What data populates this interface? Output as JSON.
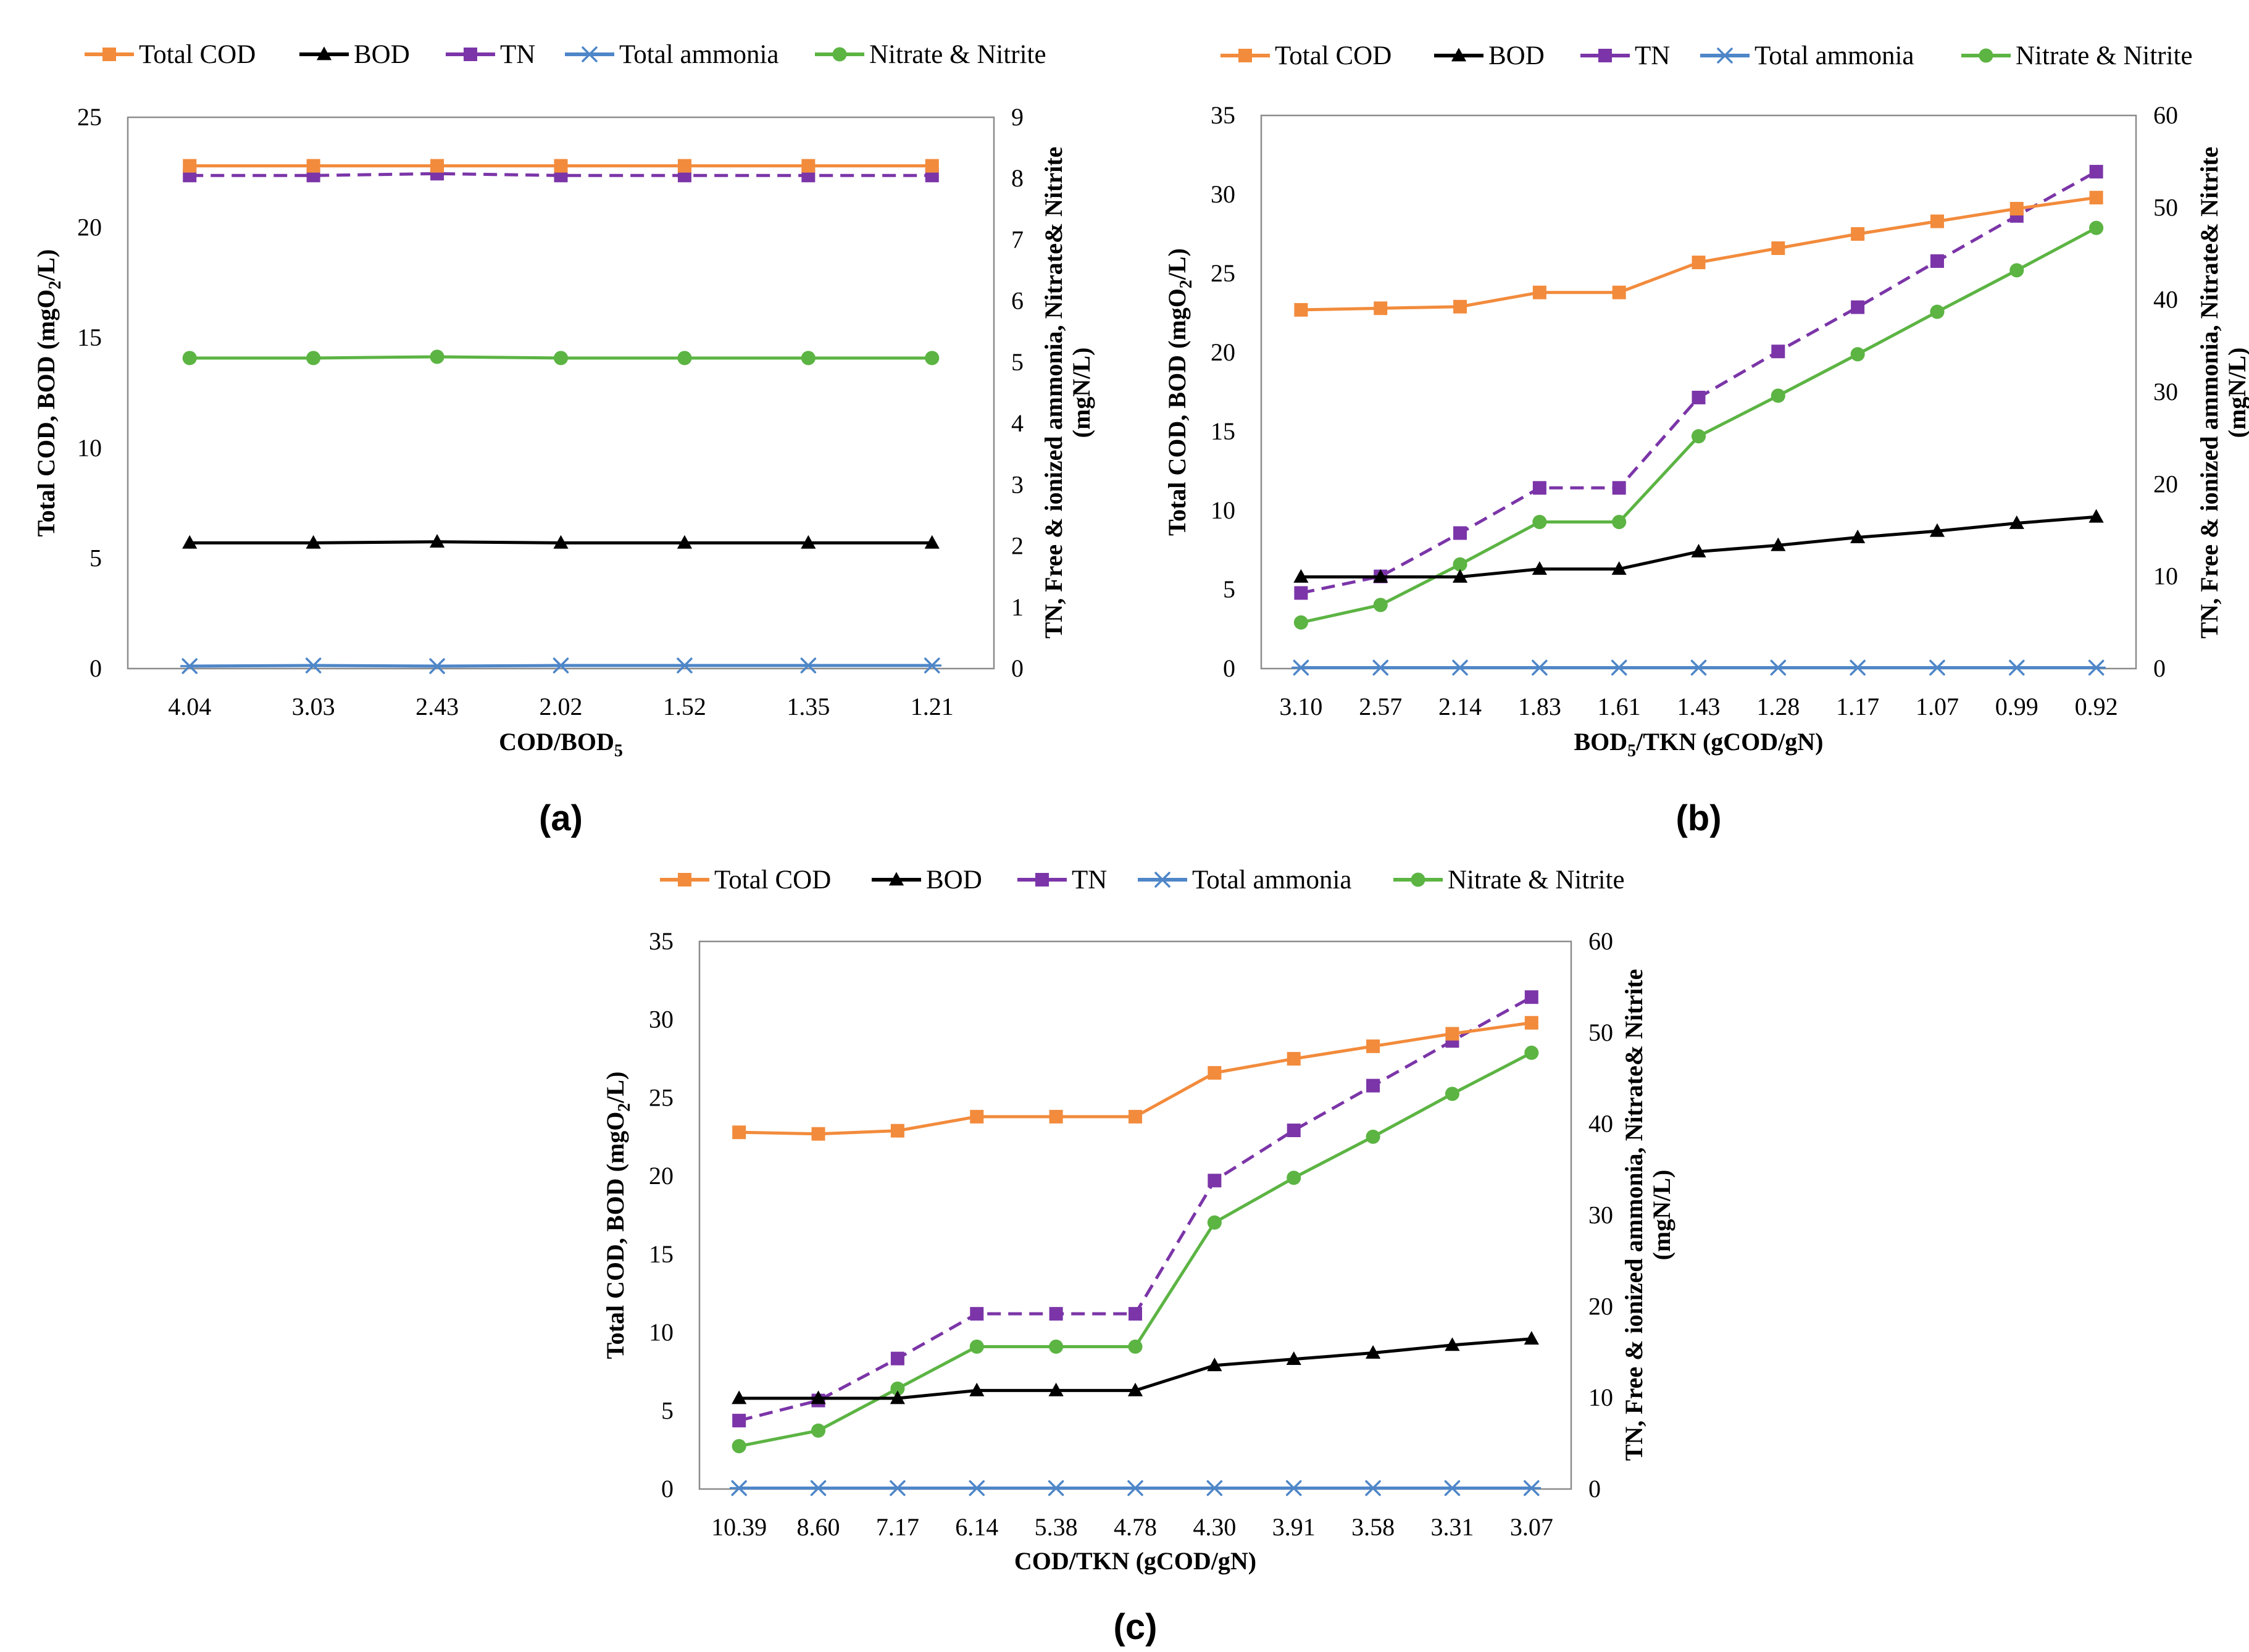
{
  "legend_keys": [
    "cod",
    "bod",
    "tn",
    "ammonia",
    "nitrate"
  ],
  "series_styles": {
    "cod": {
      "color": "#F28B3C",
      "marker": "square",
      "dashed": false,
      "axis": "left"
    },
    "bod": {
      "color": "#000000",
      "marker": "triangle",
      "dashed": false,
      "axis": "left"
    },
    "tn": {
      "color": "#7B35A8",
      "marker": "square",
      "dashed": true,
      "axis": "right"
    },
    "ammonia": {
      "color": "#4E86C8",
      "marker": "asterisk",
      "dashed": false,
      "axis": "right"
    },
    "nitrate": {
      "color": "#5CB443",
      "marker": "circle",
      "dashed": false,
      "axis": "right"
    }
  },
  "chart_data": [
    {
      "type": "line",
      "panel_label": "(a)",
      "categories": [
        "4.04",
        "3.03",
        "2.43",
        "2.02",
        "1.52",
        "1.35",
        "1.21"
      ],
      "xlabel": "COD/BOD",
      "xlabel_sub": "5",
      "ylabel_left": {
        "pre": "Total COD, BOD (mgO",
        "sub": "2",
        "post": "/L)"
      },
      "ylabel_right": [
        "TN, Free & ionized ammonia, Nitrate& Nitrite",
        "(mgN/L)"
      ],
      "ylim_left": [
        0,
        25
      ],
      "yticks_left": [
        0,
        5,
        10,
        15,
        20,
        25
      ],
      "ylim_right": [
        0,
        9
      ],
      "yticks_right": [
        0,
        1,
        2,
        3,
        4,
        5,
        6,
        7,
        8,
        9
      ],
      "legend": [
        "Total COD",
        "BOD",
        "TN",
        "Total ammonia",
        "Nitrate & Nitrite"
      ],
      "series": [
        {
          "key": "cod",
          "name": "Total COD",
          "axis": "left",
          "values": [
            22.8,
            22.8,
            22.8,
            22.8,
            22.8,
            22.8,
            22.8
          ]
        },
        {
          "key": "bod",
          "name": "BOD",
          "axis": "left",
          "values": [
            5.7,
            5.7,
            5.75,
            5.7,
            5.7,
            5.7,
            5.7
          ]
        },
        {
          "key": "tn",
          "name": "TN",
          "axis": "right",
          "values": [
            8.05,
            8.05,
            8.08,
            8.05,
            8.05,
            8.05,
            8.05
          ]
        },
        {
          "key": "ammonia",
          "name": "Total ammonia",
          "axis": "right",
          "values": [
            0.04,
            0.05,
            0.04,
            0.05,
            0.05,
            0.05,
            0.05
          ]
        },
        {
          "key": "nitrate",
          "name": "Nitrate & Nitrite",
          "axis": "right",
          "values": [
            5.07,
            5.07,
            5.09,
            5.07,
            5.07,
            5.07,
            5.07
          ]
        }
      ]
    },
    {
      "type": "line",
      "panel_label": "(b)",
      "categories": [
        "3.10",
        "2.57",
        "2.14",
        "1.83",
        "1.61",
        "1.43",
        "1.28",
        "1.17",
        "1.07",
        "0.99",
        "0.92"
      ],
      "xlabel": "BOD",
      "xlabel_sub": "5",
      "xlabel_post": "/TKN (gCOD/gN)",
      "ylabel_left": {
        "pre": "Total COD, BOD (mgO",
        "sub": "2",
        "post": "/L)"
      },
      "ylabel_right": [
        "TN, Free & ionized ammonia, Nitrate& Nitrite",
        "(mgN/L)"
      ],
      "ylim_left": [
        0,
        35
      ],
      "yticks_left": [
        0,
        5,
        10,
        15,
        20,
        25,
        30,
        35
      ],
      "ylim_right": [
        0,
        60
      ],
      "yticks_right": [
        0,
        10,
        20,
        30,
        40,
        50,
        60
      ],
      "legend": [
        "Total COD",
        "BOD",
        "TN",
        "Total ammonia",
        "Nitrate & Nitrite"
      ],
      "series": [
        {
          "key": "cod",
          "name": "Total COD",
          "axis": "left",
          "values": [
            22.7,
            22.8,
            22.9,
            23.8,
            23.8,
            25.7,
            26.6,
            27.5,
            28.3,
            29.1,
            29.8
          ]
        },
        {
          "key": "bod",
          "name": "BOD",
          "axis": "left",
          "values": [
            5.8,
            5.8,
            5.8,
            6.3,
            6.3,
            7.4,
            7.8,
            8.3,
            8.7,
            9.2,
            9.6
          ]
        },
        {
          "key": "tn",
          "name": "TN",
          "axis": "right",
          "values": [
            8.2,
            10.0,
            14.7,
            19.6,
            19.6,
            29.4,
            34.4,
            39.2,
            44.2,
            49.1,
            53.9
          ]
        },
        {
          "key": "ammonia",
          "name": "Total ammonia",
          "axis": "right",
          "values": [
            0.1,
            0.1,
            0.1,
            0.1,
            0.1,
            0.1,
            0.1,
            0.1,
            0.1,
            0.1,
            0.1
          ]
        },
        {
          "key": "nitrate",
          "name": "Nitrate & Nitrite",
          "axis": "right",
          "values": [
            5.0,
            6.9,
            11.3,
            15.9,
            15.9,
            25.2,
            29.6,
            34.1,
            38.7,
            43.2,
            47.8
          ]
        }
      ]
    },
    {
      "type": "line",
      "panel_label": "(c)",
      "categories": [
        "10.39",
        "8.60",
        "7.17",
        "6.14",
        "5.38",
        "4.78",
        "4.30",
        "3.91",
        "3.58",
        "3.31",
        "3.07"
      ],
      "xlabel": "COD/TKN (gCOD/gN)",
      "ylabel_left": {
        "pre": "Total COD, BOD (mgO",
        "sub": "2",
        "post": "/L)"
      },
      "ylabel_right": [
        "TN, Free & ionized ammonia, Nitrate& Nitrite",
        "(mgN/L)"
      ],
      "ylim_left": [
        0,
        35
      ],
      "yticks_left": [
        0,
        5,
        10,
        15,
        20,
        25,
        30,
        35
      ],
      "ylim_right": [
        0,
        60
      ],
      "yticks_right": [
        0,
        10,
        20,
        30,
        40,
        50,
        60
      ],
      "legend": [
        "Total COD",
        "BOD",
        "TN",
        "Total ammonia",
        "Nitrate & Nitrite"
      ],
      "series": [
        {
          "key": "cod",
          "name": "Total COD",
          "axis": "left",
          "values": [
            22.8,
            22.7,
            22.9,
            23.8,
            23.8,
            23.8,
            26.6,
            27.5,
            28.3,
            29.1,
            29.8
          ]
        },
        {
          "key": "bod",
          "name": "BOD",
          "axis": "left",
          "values": [
            5.8,
            5.8,
            5.8,
            6.3,
            6.3,
            6.3,
            7.9,
            8.3,
            8.7,
            9.2,
            9.6
          ]
        },
        {
          "key": "tn",
          "name": "TN",
          "axis": "right",
          "values": [
            7.5,
            9.7,
            14.3,
            19.2,
            19.2,
            19.2,
            33.8,
            39.3,
            44.2,
            49.1,
            53.9
          ]
        },
        {
          "key": "ammonia",
          "name": "Total ammonia",
          "axis": "right",
          "values": [
            0.1,
            0.1,
            0.1,
            0.1,
            0.1,
            0.1,
            0.1,
            0.1,
            0.1,
            0.1,
            0.1
          ]
        },
        {
          "key": "nitrate",
          "name": "Nitrate & Nitrite",
          "axis": "right",
          "values": [
            4.7,
            6.4,
            11.0,
            15.6,
            15.6,
            15.6,
            29.2,
            34.1,
            38.6,
            43.3,
            47.8
          ]
        }
      ]
    }
  ]
}
